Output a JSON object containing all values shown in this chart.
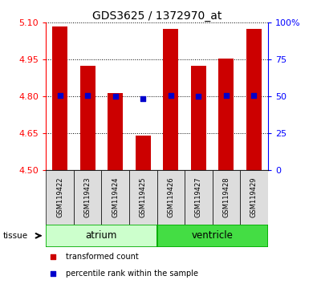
{
  "title": "GDS3625 / 1372970_at",
  "samples": [
    "GSM119422",
    "GSM119423",
    "GSM119424",
    "GSM119425",
    "GSM119426",
    "GSM119427",
    "GSM119428",
    "GSM119429"
  ],
  "bar_tops": [
    5.085,
    4.925,
    4.815,
    4.64,
    5.075,
    4.925,
    4.955,
    5.075
  ],
  "bar_base": 4.5,
  "blue_values": [
    4.803,
    4.803,
    4.8,
    4.79,
    4.803,
    4.8,
    4.803,
    4.803
  ],
  "left_ylim": [
    4.5,
    5.1
  ],
  "left_yticks": [
    4.5,
    4.65,
    4.8,
    4.95,
    5.1
  ],
  "right_yticks": [
    0,
    25,
    50,
    75,
    100
  ],
  "right_yticklabels": [
    "0",
    "25",
    "50",
    "75",
    "100%"
  ],
  "bar_color": "#cc0000",
  "blue_color": "#0000cc",
  "tissue_groups": [
    {
      "label": "atrium",
      "indices": [
        0,
        1,
        2,
        3
      ],
      "color": "#ccffcc",
      "edge_color": "#00aa00"
    },
    {
      "label": "ventricle",
      "indices": [
        4,
        5,
        6,
        7
      ],
      "color": "#44dd44",
      "edge_color": "#00aa00"
    }
  ],
  "tissue_label": "tissue",
  "legend_items": [
    {
      "label": "transformed count",
      "color": "#cc0000",
      "marker": "s"
    },
    {
      "label": "percentile rank within the sample",
      "color": "#0000cc",
      "marker": "s"
    }
  ],
  "bar_width": 0.55,
  "grid_color": "black",
  "grid_linestyle": ":"
}
